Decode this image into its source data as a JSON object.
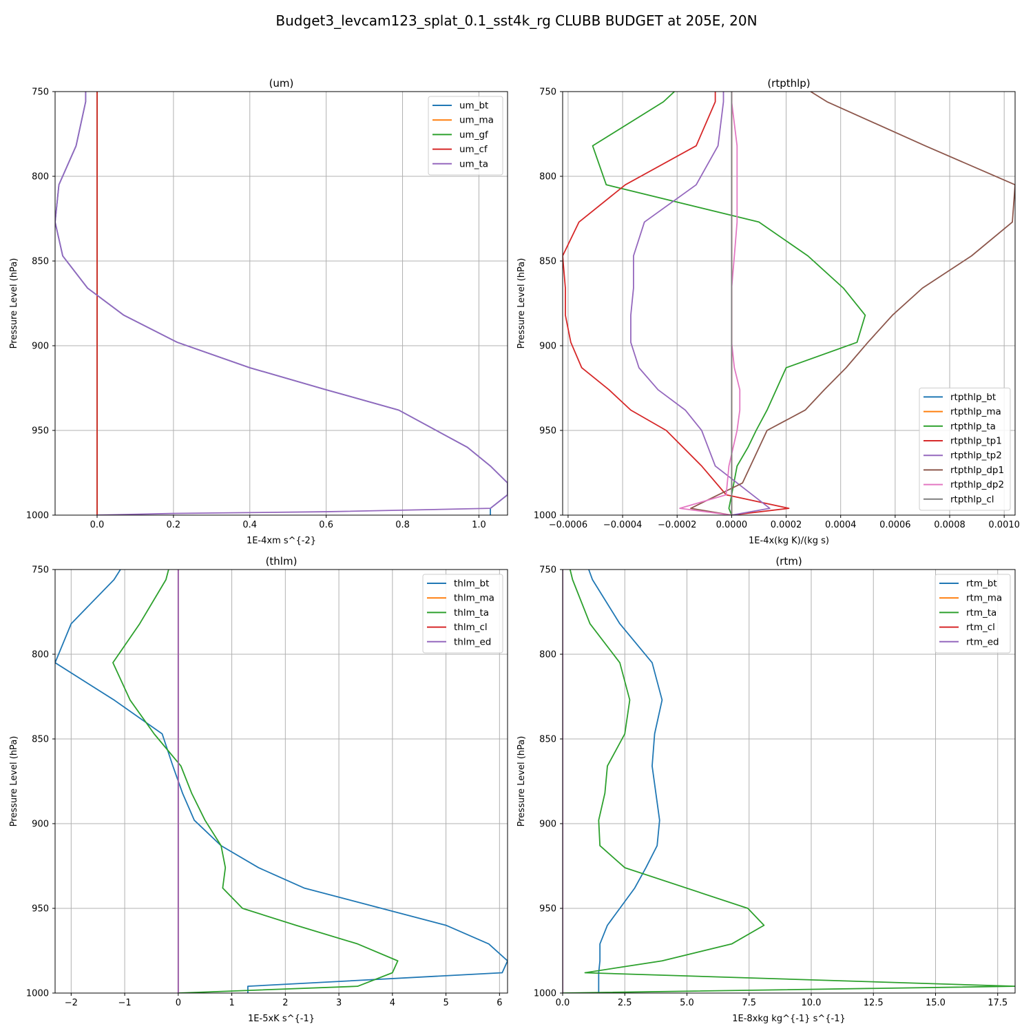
{
  "figure": {
    "title": "Budget3_levcam123_splat_0.1_sst4k_rg CLUBB BUDGET at 205E, 20N"
  },
  "chart_data": [
    {
      "type": "line",
      "title": "(um)",
      "xlabel": "1E-4xm s^{-2}",
      "ylabel": "Pressure Level (hPa)",
      "xlim": [
        -0.11,
        1.075
      ],
      "ylim": [
        1000,
        750
      ],
      "y_inverted": true,
      "grid": true,
      "legend_position": "upper-right",
      "x_ticks": [
        0.0,
        0.2,
        0.4,
        0.6,
        0.8,
        1.0
      ],
      "x_tick_labels": [
        "0.0",
        "0.2",
        "0.4",
        "0.6",
        "0.8",
        "1.0"
      ],
      "y_ticks": [
        750,
        800,
        850,
        900,
        950,
        1000
      ],
      "y_tick_labels": [
        "750",
        "800",
        "850",
        "900",
        "950",
        "1000"
      ],
      "series": [
        {
          "name": "um_bt",
          "color": "#1f77b4",
          "x": [
            -0.03,
            -0.03,
            -0.055,
            -0.1,
            -0.11,
            -0.09,
            -0.025,
            0.07,
            0.21,
            0.4,
            0.6,
            0.79,
            0.97,
            1.03,
            1.075,
            1.075,
            1.03,
            1.03
          ],
          "y": [
            750,
            756,
            782,
            805,
            827,
            847,
            866,
            882,
            898,
            913,
            926,
            938,
            960,
            971,
            981,
            988,
            996,
            1000
          ]
        },
        {
          "name": "um_ma",
          "color": "#ff7f0e",
          "x": [
            0,
            0
          ],
          "y": [
            750,
            1000
          ]
        },
        {
          "name": "um_gf",
          "color": "#2ca02c",
          "x": [
            0,
            0
          ],
          "y": [
            750,
            1000
          ]
        },
        {
          "name": "um_cf",
          "color": "#d62728",
          "x": [
            0,
            0
          ],
          "y": [
            750,
            1000
          ]
        },
        {
          "name": "um_ta",
          "color": "#9467bd",
          "x": [
            -0.03,
            -0.03,
            -0.055,
            -0.1,
            -0.11,
            -0.09,
            -0.025,
            0.07,
            0.21,
            0.4,
            0.6,
            0.79,
            0.97,
            1.03,
            1.075,
            1.075,
            1.03,
            0.6,
            0.2,
            0.0
          ],
          "y": [
            750,
            756,
            782,
            805,
            827,
            847,
            866,
            882,
            898,
            913,
            926,
            938,
            960,
            971,
            981,
            988,
            996,
            998,
            999,
            1000
          ]
        }
      ]
    },
    {
      "type": "line",
      "title": "(rtpthlp)",
      "xlabel": "1E-4x(kg K)/(kg s)",
      "ylabel": "Pressure Level (hPa)",
      "xlim": [
        -0.00062,
        0.00104
      ],
      "ylim": [
        1000,
        750
      ],
      "y_inverted": true,
      "grid": true,
      "legend_position": "lower-right",
      "x_ticks": [
        -0.0006,
        -0.0004,
        -0.0002,
        0.0,
        0.0002,
        0.0004,
        0.0006,
        0.0008,
        0.001
      ],
      "x_tick_labels": [
        "−0.0006",
        "−0.0004",
        "−0.0002",
        "0.0000",
        "0.0002",
        "0.0004",
        "0.0006",
        "0.0008",
        "0.0010"
      ],
      "y_ticks": [
        750,
        800,
        850,
        900,
        950,
        1000
      ],
      "y_tick_labels": [
        "750",
        "800",
        "850",
        "900",
        "950",
        "1000"
      ],
      "series": [
        {
          "name": "rtpthlp_bt",
          "color": "#1f77b4",
          "x": [
            0,
            0
          ],
          "y": [
            750,
            1000
          ]
        },
        {
          "name": "rtpthlp_ma",
          "color": "#ff7f0e",
          "x": [
            0,
            0
          ],
          "y": [
            750,
            1000
          ]
        },
        {
          "name": "rtpthlp_ta",
          "color": "#2ca02c",
          "x": [
            -0.00021,
            -0.00025,
            -0.00051,
            -0.00046,
            0.0001,
            0.00028,
            0.00041,
            0.00049,
            0.00046,
            0.0002,
            0.00013,
            9e-05,
            6e-05,
            2e-05,
            0.0,
            -1e-05,
            0.0
          ],
          "y": [
            750,
            756,
            782,
            805,
            827,
            847,
            866,
            882,
            898,
            913,
            938,
            950,
            960,
            971,
            988,
            996,
            1000
          ]
        },
        {
          "name": "rtpthlp_tp1",
          "color": "#d62728",
          "x": [
            -6e-05,
            -6e-05,
            -0.00013,
            -0.00039,
            -0.00056,
            -0.00062,
            -0.00061,
            -0.00061,
            -0.00059,
            -0.00055,
            -0.00045,
            -0.00037,
            -0.00024,
            -0.00011,
            -2e-05,
            0.00021,
            0.0
          ],
          "y": [
            750,
            756,
            782,
            805,
            827,
            847,
            866,
            882,
            898,
            913,
            926,
            938,
            950,
            971,
            988,
            996,
            1000
          ]
        },
        {
          "name": "rtpthlp_tp2",
          "color": "#9467bd",
          "x": [
            -3e-05,
            -3e-05,
            -5e-05,
            -0.00013,
            -0.00032,
            -0.00036,
            -0.00036,
            -0.00037,
            -0.00037,
            -0.00034,
            -0.00027,
            -0.00017,
            -0.00011,
            -6e-05,
            0.00014,
            0.0
          ],
          "y": [
            750,
            756,
            782,
            805,
            827,
            847,
            866,
            882,
            898,
            913,
            926,
            938,
            950,
            971,
            996,
            1000
          ]
        },
        {
          "name": "rtpthlp_dp1",
          "color": "#8c564b",
          "x": [
            0.00029,
            0.00035,
            0.00071,
            0.00104,
            0.00103,
            0.00088,
            0.0007,
            0.00059,
            0.0005,
            0.00042,
            0.00034,
            0.00027,
            0.00013,
            4e-05,
            -0.00015,
            0.0
          ],
          "y": [
            750,
            756,
            782,
            805,
            827,
            847,
            866,
            882,
            898,
            913,
            926,
            938,
            950,
            981,
            996,
            1000
          ]
        },
        {
          "name": "rtpthlp_dp2",
          "color": "#e377c2",
          "x": [
            0.0,
            0.0,
            2e-05,
            2e-05,
            2e-05,
            1e-05,
            0.0,
            0.0,
            0.0,
            1e-05,
            3e-05,
            3e-05,
            2e-05,
            -1e-05,
            -2e-05,
            -0.00019,
            0.0
          ],
          "y": [
            750,
            756,
            782,
            805,
            827,
            847,
            866,
            882,
            898,
            913,
            926,
            938,
            950,
            971,
            988,
            996,
            1000
          ]
        },
        {
          "name": "rtpthlp_cl",
          "color": "#7f7f7f",
          "x": [
            0,
            0
          ],
          "y": [
            750,
            1000
          ]
        }
      ]
    },
    {
      "type": "line",
      "title": "(thlm)",
      "xlabel": "1E-5xK s^{-1}",
      "ylabel": "Pressure Level (hPa)",
      "xlim": [
        -2.3,
        6.15
      ],
      "ylim": [
        1000,
        750
      ],
      "y_inverted": true,
      "grid": true,
      "legend_position": "upper-right",
      "x_ticks": [
        -2,
        -1,
        0,
        1,
        2,
        3,
        4,
        5,
        6
      ],
      "x_tick_labels": [
        "−2",
        "−1",
        "0",
        "1",
        "2",
        "3",
        "4",
        "5",
        "6"
      ],
      "y_ticks": [
        750,
        800,
        850,
        900,
        950,
        1000
      ],
      "y_tick_labels": [
        "750",
        "800",
        "850",
        "900",
        "950",
        "1000"
      ],
      "series": [
        {
          "name": "thlm_bt",
          "color": "#1f77b4",
          "x": [
            -1.08,
            -1.2,
            -2.0,
            -2.3,
            -1.2,
            -0.3,
            -0.1,
            0.08,
            0.3,
            0.8,
            1.5,
            2.35,
            5.0,
            5.8,
            6.15,
            6.05,
            1.3,
            1.3
          ],
          "y": [
            750,
            756,
            782,
            805,
            827,
            847,
            866,
            882,
            898,
            913,
            926,
            938,
            960,
            971,
            981,
            988,
            996,
            1000
          ]
        },
        {
          "name": "thlm_ma",
          "color": "#ff7f0e",
          "x": [
            0,
            0
          ],
          "y": [
            750,
            1000
          ]
        },
        {
          "name": "thlm_ta",
          "color": "#2ca02c",
          "x": [
            -0.18,
            -0.23,
            -0.72,
            -1.22,
            -0.9,
            -0.45,
            0.05,
            0.25,
            0.5,
            0.8,
            0.88,
            0.83,
            1.2,
            2.2,
            3.35,
            4.1,
            4.0,
            3.35,
            0.0
          ],
          "y": [
            750,
            756,
            782,
            805,
            827,
            847,
            866,
            882,
            898,
            913,
            926,
            938,
            950,
            960,
            971,
            981,
            988,
            996,
            1000
          ]
        },
        {
          "name": "thlm_cl",
          "color": "#d62728",
          "x": [
            0,
            0
          ],
          "y": [
            750,
            1000
          ]
        },
        {
          "name": "thlm_ed",
          "color": "#9467bd",
          "x": [
            0,
            0
          ],
          "y": [
            750,
            1000
          ]
        }
      ]
    },
    {
      "type": "line",
      "title": "(rtm)",
      "xlabel": "1E-8xkg kg^{-1} s^{-1}",
      "ylabel": "Pressure Level (hPa)",
      "xlim": [
        0,
        18.2
      ],
      "ylim": [
        1000,
        750
      ],
      "y_inverted": true,
      "grid": true,
      "legend_position": "upper-right",
      "x_ticks": [
        0,
        2.5,
        5,
        7.5,
        10,
        12.5,
        15,
        17.5
      ],
      "x_tick_labels": [
        "0.0",
        "2.5",
        "5.0",
        "7.5",
        "10.0",
        "12.5",
        "15.0",
        "17.5"
      ],
      "y_ticks": [
        750,
        800,
        850,
        900,
        950,
        1000
      ],
      "y_tick_labels": [
        "750",
        "800",
        "850",
        "900",
        "950",
        "1000"
      ],
      "series": [
        {
          "name": "rtm_bt",
          "color": "#1f77b4",
          "x": [
            1.05,
            1.2,
            2.3,
            3.6,
            4.0,
            3.7,
            3.6,
            3.75,
            3.9,
            3.8,
            3.35,
            2.9,
            2.3,
            1.8,
            1.5,
            1.5,
            1.45,
            1.45
          ],
          "y": [
            750,
            756,
            782,
            805,
            827,
            847,
            866,
            882,
            898,
            913,
            926,
            938,
            950,
            960,
            971,
            981,
            988,
            1000
          ]
        },
        {
          "name": "rtm_ma",
          "color": "#ff7f0e",
          "x": [
            0,
            0
          ],
          "y": [
            750,
            1000
          ]
        },
        {
          "name": "rtm_ta",
          "color": "#2ca02c",
          "x": [
            0.3,
            0.4,
            1.1,
            2.3,
            2.7,
            2.5,
            1.8,
            1.7,
            1.45,
            1.5,
            2.5,
            7.45,
            8.1,
            6.8,
            4.0,
            0.9,
            18.2,
            0.0
          ],
          "y": [
            750,
            756,
            782,
            805,
            827,
            847,
            866,
            882,
            898,
            913,
            926,
            950,
            960,
            971,
            981,
            988,
            996,
            1000
          ]
        },
        {
          "name": "rtm_cl",
          "color": "#d62728",
          "x": [
            0,
            0
          ],
          "y": [
            750,
            1000
          ]
        },
        {
          "name": "rtm_ed",
          "color": "#9467bd",
          "x": [
            0,
            0
          ],
          "y": [
            750,
            1000
          ]
        }
      ]
    }
  ]
}
